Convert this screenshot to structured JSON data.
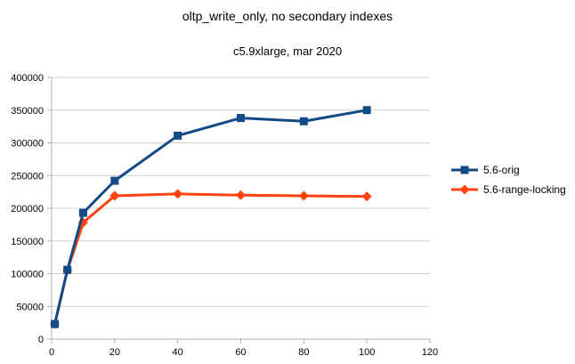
{
  "chart_data": {
    "type": "line",
    "title": "oltp_write_only, no secondary indexes",
    "subtitle": "c5.9xlarge, mar 2020",
    "x": [
      1,
      5,
      10,
      20,
      40,
      60,
      80,
      100
    ],
    "series": [
      {
        "name": "5.6-orig",
        "color": "#124a87",
        "marker": "square",
        "values": [
          23000,
          106000,
          193000,
          242000,
          311000,
          338000,
          333000,
          350000
        ]
      },
      {
        "name": "5.6-range-locking",
        "color": "#ff420e",
        "marker": "diamond",
        "values": [
          23000,
          105000,
          178000,
          219000,
          222000,
          220000,
          219000,
          218000
        ]
      }
    ],
    "xlim": [
      0,
      120
    ],
    "ylim": [
      0,
      400000
    ],
    "x_ticks": [
      0,
      20,
      40,
      60,
      80,
      100,
      120
    ],
    "y_ticks": [
      0,
      50000,
      100000,
      150000,
      200000,
      250000,
      300000,
      350000,
      400000
    ],
    "grid": "horizontal-only",
    "legend_position": "right",
    "colors": {
      "axis": "#b0b0b0",
      "gridline": "#d0d0d0",
      "text": "#000000",
      "background": "#ffffff"
    }
  }
}
